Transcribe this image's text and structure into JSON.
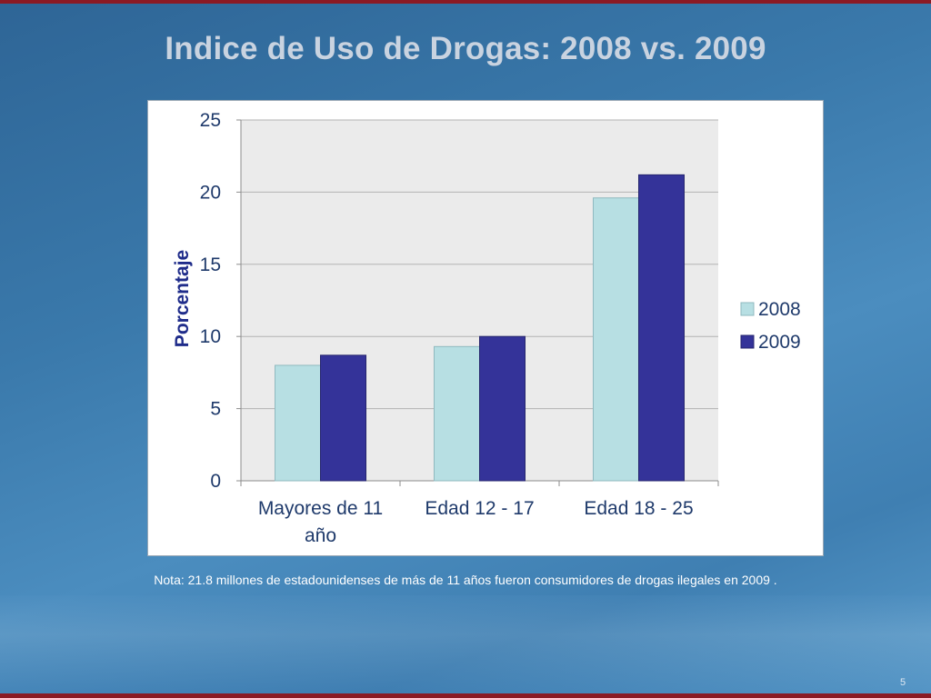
{
  "slide": {
    "title": "Indice de Uso de Drogas: 2008 vs. 2009",
    "note": "Nota: 21.8 millones de estadounidenses de más de 11 años fueron consumidores de drogas ilegales en 2009 .",
    "page_number": "5"
  },
  "colors": {
    "series_2008": "#b7dfe3",
    "series_2009": "#343399",
    "plot_background": "#ebebeb",
    "text": "#1f3a6b"
  },
  "chart_data": {
    "type": "bar",
    "categories": [
      [
        "Mayores de 11",
        "año"
      ],
      [
        "Edad 12 - 17"
      ],
      [
        "Edad 18 - 25"
      ]
    ],
    "series": [
      {
        "name": "2008",
        "values": [
          8.0,
          9.3,
          19.6
        ]
      },
      {
        "name": "2009",
        "values": [
          8.7,
          10.0,
          21.2
        ]
      }
    ],
    "ylabel": "Porcentaje",
    "ylim": [
      0,
      25
    ],
    "yticks": [
      0,
      5,
      10,
      15,
      20,
      25
    ],
    "grid": true,
    "legend": "right"
  }
}
